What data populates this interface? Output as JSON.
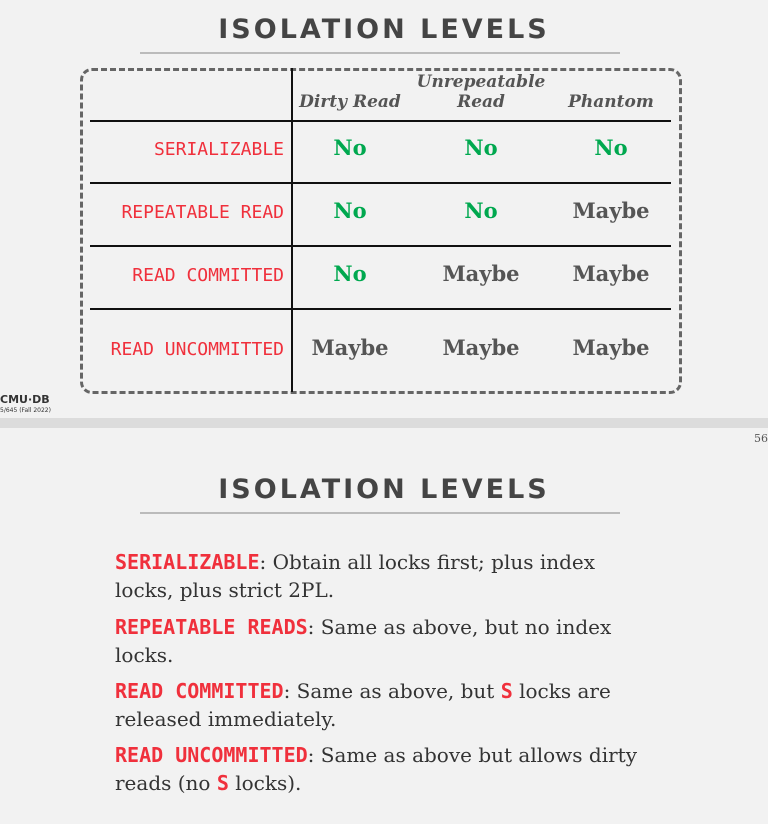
{
  "slide1": {
    "title": "ISOLATION LEVELS",
    "columns": [
      "Dirty Read",
      "Unrepeatable Read",
      "Phantom"
    ],
    "rows": [
      {
        "level": "SERIALIZABLE",
        "values": [
          "No",
          "No",
          "No"
        ]
      },
      {
        "level": "REPEATABLE READ",
        "values": [
          "No",
          "No",
          "Maybe"
        ]
      },
      {
        "level": "READ COMMITTED",
        "values": [
          "No",
          "Maybe",
          "Maybe"
        ]
      },
      {
        "level": "READ UNCOMMITTED",
        "values": [
          "Maybe",
          "Maybe",
          "Maybe"
        ]
      }
    ],
    "footer_logo": "CMU·DB",
    "footer_course": "5/645 (Fall 2022)"
  },
  "page_number": "56",
  "slide2": {
    "title": "ISOLATION LEVELS",
    "items": [
      {
        "kw": "SERIALIZABLE",
        "text": ": Obtain all locks first; plus index locks, plus strict 2PL."
      },
      {
        "kw": "REPEATABLE READS",
        "text": ": Same as above, but no index locks."
      },
      {
        "kw": "READ COMMITTED",
        "text_a": ": Same as above, but ",
        "s": "S",
        "text_b": " locks are released immediately."
      },
      {
        "kw": "READ UNCOMMITTED",
        "text_a": ": Same as above but allows dirty reads (no ",
        "s": "S",
        "text_b": " locks)."
      }
    ]
  },
  "colors": {
    "red": "#f0303c",
    "green": "#00a84f",
    "grey": "#555555"
  }
}
